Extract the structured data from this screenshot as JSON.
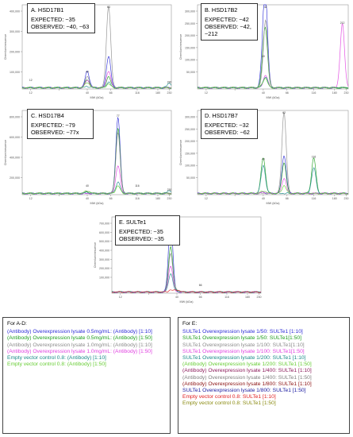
{
  "panels": [
    {
      "id": "A",
      "title": "A. HSD17B1",
      "expected": "EXPECTED: ~35",
      "observed_lines": [
        "OBSERVED: ~40, ~63"
      ],
      "ylabel": "Chemiluminescence",
      "xlabel": "MW (kDa)",
      "ytick_labels": [
        "400,000",
        "300,000",
        "200,000",
        "100,000"
      ],
      "xtick_labels": [
        "12",
        "",
        "40",
        "66",
        "116",
        "180",
        "230"
      ],
      "peak_labels": [
        "63",
        "40",
        "12",
        "230"
      ]
    },
    {
      "id": "B",
      "title": "B. HSD17B2",
      "expected": "EXPECTED: ~42",
      "observed_lines": [
        "OBSERVED: ~42,",
        "~212"
      ],
      "ylabel": "Chemiluminescence",
      "xlabel": "MW (kDa)",
      "ytick_labels": [
        "300,000",
        "250,000",
        "200,000",
        "150,000",
        "100,000",
        "50,000"
      ],
      "xtick_labels": [
        "12",
        "",
        "40",
        "66",
        "116",
        "180",
        "230"
      ],
      "peak_labels": [
        "42",
        "212",
        "40"
      ]
    },
    {
      "id": "C",
      "title": "C. HSD17B4",
      "expected": "EXPECTED: ~79",
      "observed_lines": [
        "OBSERVED: ~77x"
      ],
      "ylabel": "Chemiluminescence",
      "xlabel": "MW (kDa)",
      "ytick_labels": [
        "800,000",
        "600,000",
        "400,000",
        "200,000"
      ],
      "xtick_labels": [
        "12",
        "",
        "40",
        "66",
        "116",
        "180",
        "230"
      ],
      "peak_labels": [
        "77",
        "116",
        "40",
        "230"
      ]
    },
    {
      "id": "D",
      "title": "D. HSD17B7",
      "expected": "EXPECTED: ~32",
      "observed_lines": [
        "OBSERVED: ~62"
      ],
      "ylabel": "Chemiluminescence",
      "xlabel": "MW (kDa)",
      "ytick_labels": [
        "300,000",
        "250,000",
        "200,000",
        "150,000",
        "100,000",
        "50,000"
      ],
      "xtick_labels": [
        "12",
        "",
        "40",
        "66",
        "116",
        "180",
        "230"
      ],
      "peak_labels": [
        "62",
        "40",
        "116"
      ]
    },
    {
      "id": "E",
      "title": "E. SULTe1",
      "expected": "EXPECTED: ~35",
      "observed_lines": [
        "OBSERVED: ~35"
      ],
      "ylabel": "Chemiluminescence",
      "xlabel": "MW (kDa)",
      "ytick_labels": [
        "700,000",
        "600,000",
        "500,000",
        "400,000",
        "300,000",
        "200,000",
        "100,000"
      ],
      "xtick_labels": [
        "12",
        "",
        "40",
        "66",
        "116",
        "180",
        "230"
      ],
      "peak_labels": [
        "35",
        "66"
      ]
    }
  ],
  "legend_ad": {
    "heading": "For A-D:",
    "items": [
      {
        "text": "(Antibody) Overexpression lysate 0.5mg/mL: (Antibody) [1:10]",
        "color": "#2b2bd6"
      },
      {
        "text": "(Antibody) Overexpression lysate 0.5mg/mL: (Antibody) [1:50]",
        "color": "#1e9e1e"
      },
      {
        "text": "(Antibody) Overexpression lysate 1.0mg/mL: (Antibody) [1:10]",
        "color": "#8c8c8c"
      },
      {
        "text": "(Antibody) Overexpression lysate 1.0mg/mL: (Antibody) [1:50]",
        "color": "#e040e0"
      },
      {
        "text": "Empty vector control 0.8: (Antibody) [1:10]",
        "color": "#1a8a8a"
      },
      {
        "text": "Empty vector control 0.8: (Antibody) [1:50]",
        "color": "#66cc33"
      }
    ]
  },
  "legend_e": {
    "heading": "For E:",
    "items": [
      {
        "text": "SULTe1 Overexpression lysate 1/50: SULTe1 [1:10]",
        "color": "#2b2bd6"
      },
      {
        "text": "SULTe1 Overexpression lysate 1/50: SULTe1[1:50]",
        "color": "#1e9e1e"
      },
      {
        "text": "SULTe1 Overexpression lysate 1/100: SULTe1[1:10]",
        "color": "#8c8c8c"
      },
      {
        "text": "SULTe1 Overexpression lysate 1/100: SULTe1[1:50]",
        "color": "#e040e0"
      },
      {
        "text": "SULTe1 Overexpression lysate 1/200: SULTe1 [1:10]",
        "color": "#1a8a8a"
      },
      {
        "text": "(Antibody) Overexpression lysate 1/200: SULTe1 [1:50]",
        "color": "#66cc33"
      },
      {
        "text": "(Antibody) Overexpression lysate 1/400: SULTe1 [1:10]",
        "color": "#8b1a5a"
      },
      {
        "text": "(Antibody) Overexpression lysate 1/400: SULTe1 [1:50]",
        "color": "#808080"
      },
      {
        "text": "(Antibody) Overexpression lysate 1/800: SULTe1 [1:10]",
        "color": "#8b1010"
      },
      {
        "text": "SULTe1 Overexpression lysate 1/800: SULTe1 [1:50]",
        "color": "#1a1aa0"
      },
      {
        "text": "Empty vector control 0.8: SULTe1 [1:10]",
        "color": "#e02020"
      },
      {
        "text": "Empty vector control 0.8: SULTe1 [1:50]",
        "color": "#8a8a10"
      }
    ]
  },
  "chart_data": [
    {
      "type": "line",
      "panel": "A",
      "title": "A. HSD17B1",
      "xlabel": "MW (kDa)",
      "ylabel": "Chemiluminescence",
      "xlim": [
        10,
        240
      ],
      "ylim": [
        0,
        450000
      ],
      "series": [
        {
          "color": "#8c8c8c",
          "peaks": [
            [
              63,
              440000
            ],
            [
              40,
              60000
            ]
          ]
        },
        {
          "color": "#2b2bd6",
          "peaks": [
            [
              63,
              170000
            ],
            [
              40,
              80000
            ]
          ]
        },
        {
          "color": "#1e9e1e",
          "peaks": [
            [
              63,
              60000
            ],
            [
              40,
              30000
            ]
          ]
        },
        {
          "color": "#e040e0",
          "peaks": [
            [
              63,
              90000
            ],
            [
              40,
              40000
            ]
          ]
        },
        {
          "color": "#1a8a8a",
          "peaks": [
            [
              63,
              30000
            ],
            [
              230,
              25000
            ]
          ]
        },
        {
          "color": "#66cc33",
          "peaks": [
            [
              63,
              20000
            ],
            [
              40,
              15000
            ]
          ]
        }
      ]
    },
    {
      "type": "line",
      "panel": "B",
      "title": "B. HSD17B2",
      "xlabel": "MW (kDa)",
      "ylabel": "Chemiluminescence",
      "xlim": [
        10,
        240
      ],
      "ylim": [
        0,
        330000
      ],
      "series": [
        {
          "color": "#2b2bd6",
          "peaks": [
            [
              42,
              320000
            ],
            [
              40,
              120000
            ]
          ]
        },
        {
          "color": "#1e9e1e",
          "peaks": [
            [
              42,
              200000
            ],
            [
              40,
              60000
            ]
          ]
        },
        {
          "color": "#8c8c8c",
          "peaks": [
            [
              42,
              260000
            ]
          ]
        },
        {
          "color": "#e040e0",
          "peaks": [
            [
              212,
              250000
            ],
            [
              42,
              50000
            ]
          ]
        },
        {
          "color": "#1a8a8a",
          "peaks": [
            [
              42,
              40000
            ]
          ]
        },
        {
          "color": "#66cc33",
          "peaks": [
            [
              42,
              30000
            ]
          ]
        }
      ]
    },
    {
      "type": "line",
      "panel": "C",
      "title": "C. HSD17B4",
      "xlabel": "MW (kDa)",
      "ylabel": "Chemiluminescence",
      "xlim": [
        10,
        240
      ],
      "ylim": [
        0,
        900000
      ],
      "series": [
        {
          "color": "#2b2bd6",
          "peaks": [
            [
              77,
              820000
            ]
          ]
        },
        {
          "color": "#1e9e1e",
          "peaks": [
            [
              77,
              700000
            ]
          ]
        },
        {
          "color": "#8c8c8c",
          "peaks": [
            [
              77,
              650000
            ]
          ]
        },
        {
          "color": "#e040e0",
          "peaks": [
            [
              77,
              300000
            ]
          ]
        },
        {
          "color": "#1a8a8a",
          "peaks": [
            [
              77,
              120000
            ],
            [
              230,
              30000
            ]
          ]
        },
        {
          "color": "#66cc33",
          "peaks": [
            [
              77,
              80000
            ]
          ]
        }
      ]
    },
    {
      "type": "line",
      "panel": "D",
      "title": "D. HSD17B7",
      "xlabel": "MW (kDa)",
      "ylabel": "Chemiluminescence",
      "xlim": [
        10,
        240
      ],
      "ylim": [
        0,
        330000
      ],
      "series": [
        {
          "color": "#8c8c8c",
          "peaks": [
            [
              62,
              320000
            ]
          ]
        },
        {
          "color": "#2b2bd6",
          "peaks": [
            [
              62,
              150000
            ]
          ]
        },
        {
          "color": "#1e9e1e",
          "peaks": [
            [
              40,
              130000
            ],
            [
              62,
              120000
            ],
            [
              116,
              140000
            ]
          ]
        },
        {
          "color": "#1a8a8a",
          "peaks": [
            [
              40,
              110000
            ],
            [
              116,
              100000
            ]
          ]
        },
        {
          "color": "#e040e0",
          "peaks": [
            [
              62,
              60000
            ]
          ]
        },
        {
          "color": "#66cc33",
          "peaks": [
            [
              62,
              30000
            ]
          ]
        }
      ]
    },
    {
      "type": "line",
      "panel": "E",
      "title": "E. SULTe1",
      "xlabel": "MW (kDa)",
      "ylabel": "Chemiluminescence",
      "xlim": [
        10,
        240
      ],
      "ylim": [
        0,
        750000
      ],
      "series": [
        {
          "color": "#2b2bd6",
          "peaks": [
            [
              35,
              720000
            ]
          ]
        },
        {
          "color": "#1e9e1e",
          "peaks": [
            [
              35,
              450000
            ]
          ]
        },
        {
          "color": "#8c8c8c",
          "peaks": [
            [
              35,
              380000
            ]
          ]
        },
        {
          "color": "#e040e0",
          "peaks": [
            [
              35,
              260000
            ]
          ]
        },
        {
          "color": "#1a8a8a",
          "peaks": [
            [
              35,
              180000
            ]
          ]
        },
        {
          "color": "#e02020",
          "peaks": [
            [
              35,
              20000
            ]
          ]
        }
      ]
    }
  ]
}
